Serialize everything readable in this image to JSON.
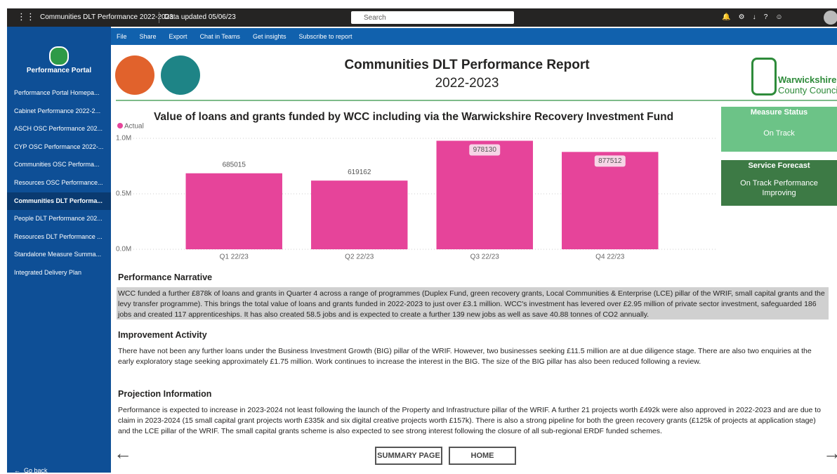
{
  "top_bar": {
    "report_title": "Communities DLT Performance 2022-2023",
    "data_updated": "Data updated 05/06/23",
    "search": "Search"
  },
  "toolbar": [
    "File",
    "Share",
    "Export",
    "Chat in Teams",
    "Get insights",
    "Subscribe to report"
  ],
  "nav": {
    "title": "Performance Portal",
    "items": [
      "Performance Portal Homepa...",
      "Cabinet Performance 2022-2...",
      "ASCH OSC Performance 202...",
      "CYP OSC Performance 2022-...",
      "Communities OSC Performa...",
      "Resources OSC Performance...",
      "Communities DLT Performa...",
      "People DLT Performance 202...",
      "Resources DLT Performance ...",
      "Standalone Measure Summa...",
      "Integrated Delivery Plan"
    ],
    "go_back": "Go back"
  },
  "header": {
    "title": "Communities DLT Performance Report",
    "subtitle": "2022-2023",
    "logo_line1": "Warwickshire",
    "logo_line2": "County Council"
  },
  "chart_data": {
    "type": "bar",
    "title": "Value of loans and grants funded by WCC including via the Warwickshire Recovery Investment Fund",
    "categories": [
      "Q1 22/23",
      "Q2 22/23",
      "Q3 22/23",
      "Q4 22/23"
    ],
    "series": [
      {
        "name": "Actual",
        "color": "#e6449a",
        "values": [
          685015,
          619162,
          978130,
          877512
        ]
      }
    ],
    "ylim": [
      0,
      1000000
    ],
    "yticks": [
      {
        "value": 0,
        "label": "0.0M"
      },
      {
        "value": 500000,
        "label": "0.5M"
      },
      {
        "value": 1000000,
        "label": "1.0M"
      }
    ],
    "grid": true,
    "legend": "top-left"
  },
  "cards": [
    {
      "title": "Measure Status",
      "value": "On Track"
    },
    {
      "title": "Service Forecast",
      "value": "On Track Performance Improving"
    }
  ],
  "sections": [
    {
      "heading": "Performance Narrative",
      "text": "WCC funded a further £878k of loans and grants in Quarter 4 across a range of programmes (Duplex Fund, green recovery grants, Local Communities & Enterprise (LCE) pillar of the WRIF, small capital grants and the levy transfer programme). This brings the total value of loans and grants funded in 2022-2023 to just over £3.1 million. WCC's investment has levered over £2.95 million of private sector investment, safeguarded 186 jobs and created 117 apprenticeships. It has also created 58.5 jobs and is expected to create a further 139 new jobs as well as save 40.88 tonnes of CO2 annually."
    },
    {
      "heading": "Improvement Activity",
      "text": "There have not been any further loans under the Business Investment Growth (BIG) pillar of the WRIF. However, two businesses seeking £11.5 million are at due diligence stage. There are also two enquiries at the early exploratory stage seeking approximately £1.75 million. Work continues to increase the interest in the BIG. The size of the BIG pillar has also been reduced following a review."
    },
    {
      "heading": "Projection Information",
      "text": "Performance is expected to increase in 2023-2024 not least following the launch of the Property and Infrastructure pillar of the WRIF. A further 21 projects worth £492k were also approved in 2022-2023 and are due to claim in 2023-2024 (15 small capital grant projects worth £335k and six digital creative projects worth £157k). There is also a strong pipeline for both the green recovery grants (£125k of projects at application stage) and the LCE pillar of the WRIF. The small capital grants scheme is also expected to see strong interest following the closure of all sub-regional ERDF funded schemes."
    }
  ],
  "buttons": [
    "SUMMARY PAGE",
    "HOME"
  ]
}
